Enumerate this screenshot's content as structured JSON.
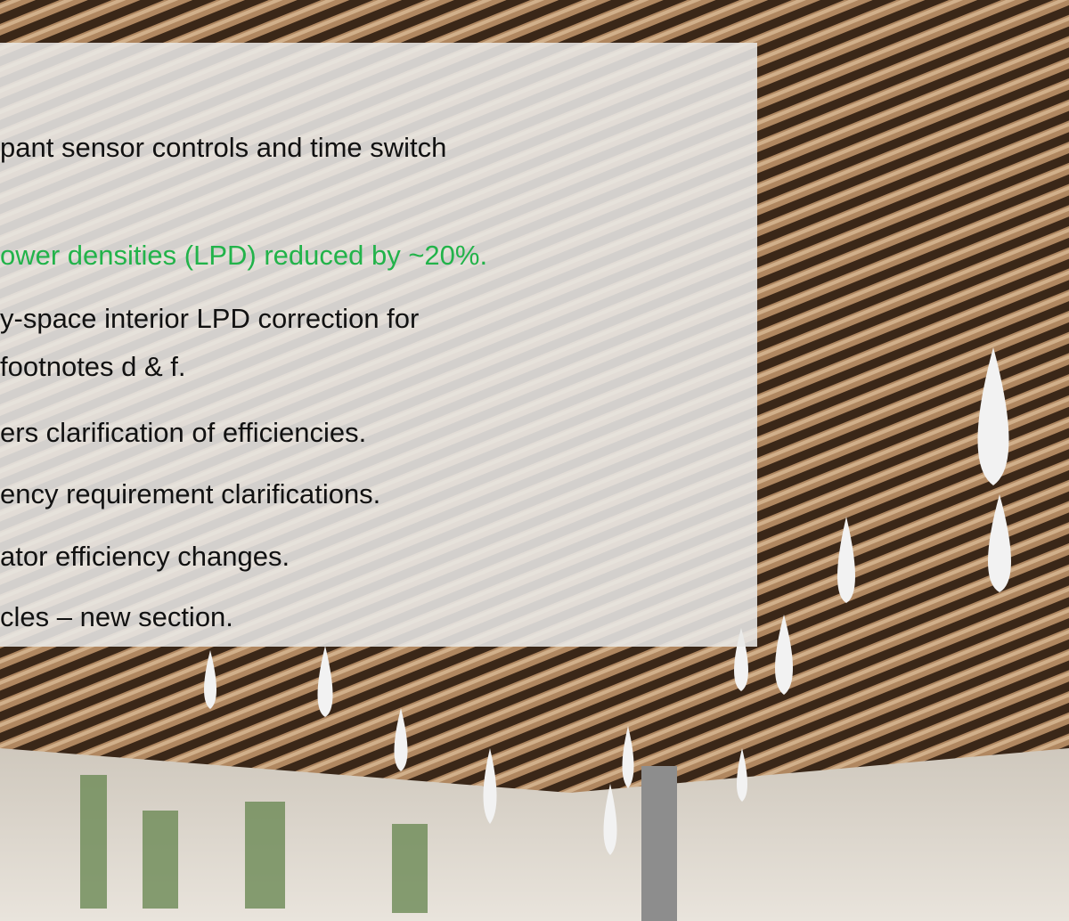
{
  "slide": {
    "lines": [
      "pant sensor controls and time switch",
      "ower densities (LPD) reduced by ~20%.",
      "y-space interior LPD correction for",
      "footnotes d & f.",
      "ers clarification of efficiencies.",
      "ency requirement clarifications.",
      "ator efficiency changes.",
      "cles – new section."
    ]
  }
}
